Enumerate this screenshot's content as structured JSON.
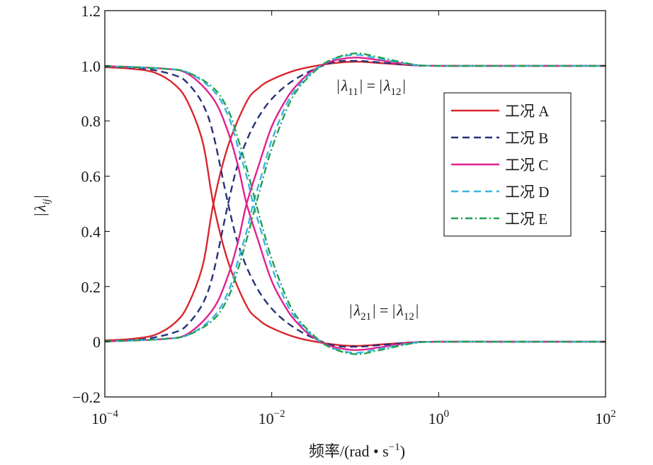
{
  "chart_data": {
    "type": "line",
    "xscale": "log",
    "xlim": [
      0.0001,
      100
    ],
    "ylim": [
      -0.2,
      1.2
    ],
    "xticks": [
      {
        "value": 0.0001,
        "base": "10",
        "exp": "−4"
      },
      {
        "value": 0.01,
        "base": "10",
        "exp": "−2"
      },
      {
        "value": 1,
        "base": "10",
        "exp": "0"
      },
      {
        "value": 100,
        "base": "10",
        "exp": "2"
      }
    ],
    "yticks": [
      {
        "value": -0.2,
        "label": "−0.2"
      },
      {
        "value": 0,
        "label": "0"
      },
      {
        "value": 0.2,
        "label": "0.2"
      },
      {
        "value": 0.4,
        "label": "0.4"
      },
      {
        "value": 0.6,
        "label": "0.6"
      },
      {
        "value": 0.8,
        "label": "0.8"
      },
      {
        "value": 1.0,
        "label": "1.0"
      },
      {
        "value": 1.2,
        "label": "1.2"
      }
    ],
    "xlabel": {
      "main": "频率/(rad • s",
      "sup": "−1",
      "tail": ")"
    },
    "ylabel": {
      "bar_left": "|",
      "symbol": "λ",
      "sub": "ij",
      "bar_right": "|"
    },
    "grid": false,
    "legend_position": "upper-right",
    "annotations": [
      {
        "id": "upper",
        "lead": "|",
        "s1": "λ",
        "sub1": "11",
        "mid": "| = |",
        "s2": "λ",
        "sub2": "12",
        "tail": "|",
        "anchor_x": 0.06,
        "anchor_y": 0.91
      },
      {
        "id": "lower",
        "lead": "|",
        "s1": "λ",
        "sub1": "21",
        "mid": "| = |",
        "s2": "λ",
        "sub2": "12",
        "tail": "|",
        "anchor_x": 0.085,
        "anchor_y": 0.095
      }
    ],
    "series": [
      {
        "name": "工况 A",
        "color": "#d9262e",
        "dash": "solid",
        "upper": {
          "x": [
            0.0001,
            0.0002,
            0.0004,
            0.0007,
            0.001,
            0.0015,
            0.002,
            0.003,
            0.005,
            0.007,
            0.01,
            0.02,
            0.05,
            0.1,
            0.2,
            0.5,
            1,
            10,
            100
          ],
          "y": [
            0.995,
            0.99,
            0.975,
            0.93,
            0.865,
            0.72,
            0.5,
            0.29,
            0.13,
            0.08,
            0.05,
            0.015,
            -0.008,
            -0.015,
            -0.01,
            -0.002,
            0,
            0,
            0
          ]
        },
        "lower": {
          "x": [
            0.0001,
            0.0002,
            0.0004,
            0.0007,
            0.001,
            0.0015,
            0.002,
            0.003,
            0.005,
            0.007,
            0.01,
            0.02,
            0.05,
            0.1,
            0.2,
            0.5,
            1,
            10,
            100
          ],
          "y": [
            0.005,
            0.01,
            0.025,
            0.07,
            0.135,
            0.28,
            0.5,
            0.71,
            0.87,
            0.92,
            0.95,
            0.985,
            1.008,
            1.015,
            1.01,
            1.002,
            1,
            1,
            1
          ]
        }
      },
      {
        "name": "工况 B",
        "color": "#27317a",
        "dash": "dashed",
        "upper": {
          "x": [
            0.0001,
            0.0003,
            0.0007,
            0.001,
            0.0015,
            0.002,
            0.003,
            0.004,
            0.006,
            0.01,
            0.02,
            0.05,
            0.1,
            0.2,
            0.5,
            1,
            10,
            100
          ],
          "y": [
            0.998,
            0.99,
            0.965,
            0.935,
            0.86,
            0.75,
            0.5,
            0.35,
            0.22,
            0.12,
            0.045,
            -0.01,
            -0.018,
            -0.012,
            -0.002,
            0,
            0,
            0
          ]
        },
        "lower": {
          "x": [
            0.0001,
            0.0003,
            0.0007,
            0.001,
            0.0015,
            0.002,
            0.003,
            0.004,
            0.006,
            0.01,
            0.02,
            0.05,
            0.1,
            0.2,
            0.5,
            1,
            10,
            100
          ],
          "y": [
            0.002,
            0.01,
            0.035,
            0.065,
            0.14,
            0.25,
            0.5,
            0.65,
            0.78,
            0.88,
            0.955,
            1.01,
            1.018,
            1.012,
            1.002,
            1,
            1,
            1
          ]
        }
      },
      {
        "name": "工况 C",
        "color": "#e0228f",
        "dash": "solid",
        "upper": {
          "x": [
            0.0001,
            0.0005,
            0.001,
            0.002,
            0.003,
            0.004,
            0.005,
            0.007,
            0.01,
            0.015,
            0.02,
            0.03,
            0.05,
            0.1,
            0.2,
            0.5,
            1,
            10,
            100
          ],
          "y": [
            0.999,
            0.99,
            0.97,
            0.88,
            0.76,
            0.63,
            0.5,
            0.36,
            0.22,
            0.12,
            0.07,
            0.02,
            -0.015,
            -0.03,
            -0.02,
            -0.003,
            0,
            0,
            0
          ]
        },
        "lower": {
          "x": [
            0.0001,
            0.0005,
            0.001,
            0.002,
            0.003,
            0.004,
            0.005,
            0.007,
            0.01,
            0.015,
            0.02,
            0.03,
            0.05,
            0.1,
            0.2,
            0.5,
            1,
            10,
            100
          ],
          "y": [
            0.001,
            0.01,
            0.03,
            0.12,
            0.24,
            0.37,
            0.5,
            0.64,
            0.78,
            0.88,
            0.93,
            0.98,
            1.015,
            1.03,
            1.02,
            1.003,
            1,
            1,
            1
          ]
        }
      },
      {
        "name": "工况 D",
        "color": "#3ab6e3",
        "dash": "dashed",
        "upper": {
          "x": [
            0.0001,
            0.0005,
            0.001,
            0.002,
            0.003,
            0.004,
            0.005,
            0.006,
            0.008,
            0.01,
            0.015,
            0.02,
            0.03,
            0.05,
            0.1,
            0.2,
            0.5,
            1,
            10,
            100
          ],
          "y": [
            0.999,
            0.99,
            0.975,
            0.91,
            0.82,
            0.7,
            0.6,
            0.5,
            0.37,
            0.27,
            0.14,
            0.08,
            0.025,
            -0.02,
            -0.04,
            -0.025,
            -0.004,
            0,
            0,
            0
          ]
        },
        "lower": {
          "x": [
            0.0001,
            0.0005,
            0.001,
            0.002,
            0.003,
            0.004,
            0.005,
            0.006,
            0.008,
            0.01,
            0.015,
            0.02,
            0.03,
            0.05,
            0.1,
            0.2,
            0.5,
            1,
            10,
            100
          ],
          "y": [
            0.001,
            0.01,
            0.025,
            0.09,
            0.18,
            0.3,
            0.4,
            0.5,
            0.63,
            0.73,
            0.86,
            0.92,
            0.975,
            1.02,
            1.04,
            1.025,
            1.004,
            1,
            1,
            1
          ]
        }
      },
      {
        "name": "工况 E",
        "color": "#22a050",
        "dash": "dashdot",
        "upper": {
          "x": [
            0.0001,
            0.0005,
            0.001,
            0.002,
            0.003,
            0.004,
            0.005,
            0.0065,
            0.008,
            0.01,
            0.015,
            0.02,
            0.03,
            0.05,
            0.1,
            0.2,
            0.5,
            1,
            10,
            100
          ],
          "y": [
            0.999,
            0.99,
            0.975,
            0.92,
            0.84,
            0.73,
            0.63,
            0.5,
            0.4,
            0.3,
            0.16,
            0.09,
            0.03,
            -0.02,
            -0.045,
            -0.03,
            -0.005,
            0,
            0,
            0
          ]
        },
        "lower": {
          "x": [
            0.0001,
            0.0005,
            0.001,
            0.002,
            0.003,
            0.004,
            0.005,
            0.0065,
            0.008,
            0.01,
            0.015,
            0.02,
            0.03,
            0.05,
            0.1,
            0.2,
            0.5,
            1,
            10,
            100
          ],
          "y": [
            0.001,
            0.01,
            0.025,
            0.08,
            0.16,
            0.27,
            0.37,
            0.5,
            0.6,
            0.7,
            0.84,
            0.91,
            0.97,
            1.02,
            1.045,
            1.03,
            1.005,
            1,
            1,
            1
          ]
        }
      }
    ]
  }
}
